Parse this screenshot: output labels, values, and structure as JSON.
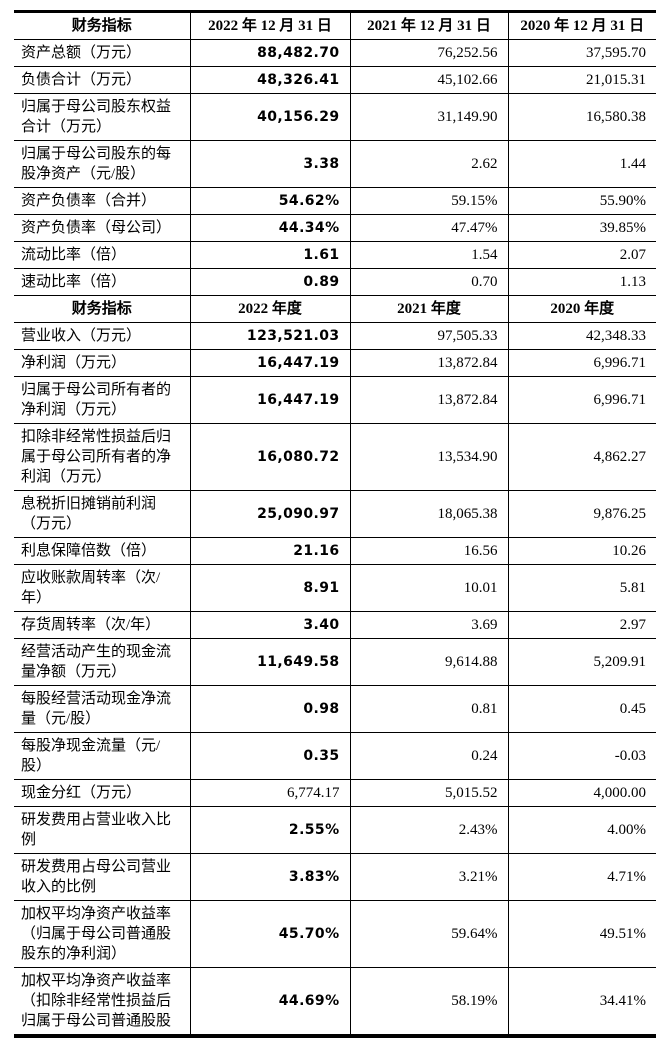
{
  "section1": {
    "headers": [
      "财务指标",
      "2022 年 12 月 31 日",
      "2021 年 12 月 31 日",
      "2020 年 12 月 31 日"
    ],
    "rows": [
      {
        "label": "资产总额（万元）",
        "y2022": "88,482.70",
        "y2021": "76,252.56",
        "y2020": "37,595.70"
      },
      {
        "label": "负债合计（万元）",
        "y2022": "48,326.41",
        "y2021": "45,102.66",
        "y2020": "21,015.31"
      },
      {
        "label": "归属于母公司股东权益\n合计（万元）",
        "y2022": "40,156.29",
        "y2021": "31,149.90",
        "y2020": "16,580.38"
      },
      {
        "label": "归属于母公司股东的每\n股净资产（元/股）",
        "y2022": "3.38",
        "y2021": "2.62",
        "y2020": "1.44"
      },
      {
        "label": "资产负债率（合并）",
        "y2022": "54.62%",
        "y2021": "59.15%",
        "y2020": "55.90%"
      },
      {
        "label": "资产负债率（母公司）",
        "y2022": "44.34%",
        "y2021": "47.47%",
        "y2020": "39.85%"
      },
      {
        "label": "流动比率（倍）",
        "y2022": "1.61",
        "y2021": "1.54",
        "y2020": "2.07"
      },
      {
        "label": "速动比率（倍）",
        "y2022": "0.89",
        "y2021": "0.70",
        "y2020": "1.13"
      }
    ]
  },
  "section2": {
    "headers": [
      "财务指标",
      "2022 年度",
      "2021 年度",
      "2020 年度"
    ],
    "rows": [
      {
        "label": "营业收入（万元）",
        "y2022": "123,521.03",
        "y2021": "97,505.33",
        "y2020": "42,348.33"
      },
      {
        "label": "净利润（万元）",
        "y2022": "16,447.19",
        "y2021": "13,872.84",
        "y2020": "6,996.71"
      },
      {
        "label": "归属于母公司所有者的\n净利润（万元）",
        "y2022": "16,447.19",
        "y2021": "13,872.84",
        "y2020": "6,996.71"
      },
      {
        "label": "扣除非经常性损益后归\n属于母公司所有者的净\n利润（万元）",
        "y2022": "16,080.72",
        "y2021": "13,534.90",
        "y2020": "4,862.27"
      },
      {
        "label": "息税折旧摊销前利润\n（万元）",
        "y2022": "25,090.97",
        "y2021": "18,065.38",
        "y2020": "9,876.25"
      },
      {
        "label": "利息保障倍数（倍）",
        "y2022": "21.16",
        "y2021": "16.56",
        "y2020": "10.26"
      },
      {
        "label": "应收账款周转率（次/\n年）",
        "y2022": "8.91",
        "y2021": "10.01",
        "y2020": "5.81"
      },
      {
        "label": "存货周转率（次/年）",
        "y2022": "3.40",
        "y2021": "3.69",
        "y2020": "2.97"
      },
      {
        "label": "经营活动产生的现金流\n量净额（万元）",
        "y2022": "11,649.58",
        "y2021": "9,614.88",
        "y2020": "5,209.91"
      },
      {
        "label": "每股经营活动现金净流\n量（元/股）",
        "y2022": "0.98",
        "y2021": "0.81",
        "y2020": "0.45"
      },
      {
        "label": "每股净现金流量（元/\n股）",
        "y2022": "0.35",
        "y2021": "0.24",
        "y2020": "-0.03"
      },
      {
        "label": "现金分红（万元）",
        "y2022": "6,774.17",
        "y2021": "5,015.52",
        "y2020": "4,000.00"
      },
      {
        "label": "研发费用占营业收入比\n例",
        "y2022": "2.55%",
        "y2021": "2.43%",
        "y2020": "4.00%"
      },
      {
        "label": "研发费用占母公司营业\n收入的比例",
        "y2022": "3.83%",
        "y2021": "3.21%",
        "y2020": "4.71%"
      },
      {
        "label": "加权平均净资产收益率\n（归属于母公司普通股\n股东的净利润）",
        "y2022": "45.70%",
        "y2021": "59.64%",
        "y2020": "49.51%"
      },
      {
        "label": "加权平均净资产收益率\n（扣除非经常性损益后\n归属于母公司普通股股",
        "y2022": "44.69%",
        "y2021": "58.19%",
        "y2020": "34.41%"
      }
    ]
  }
}
